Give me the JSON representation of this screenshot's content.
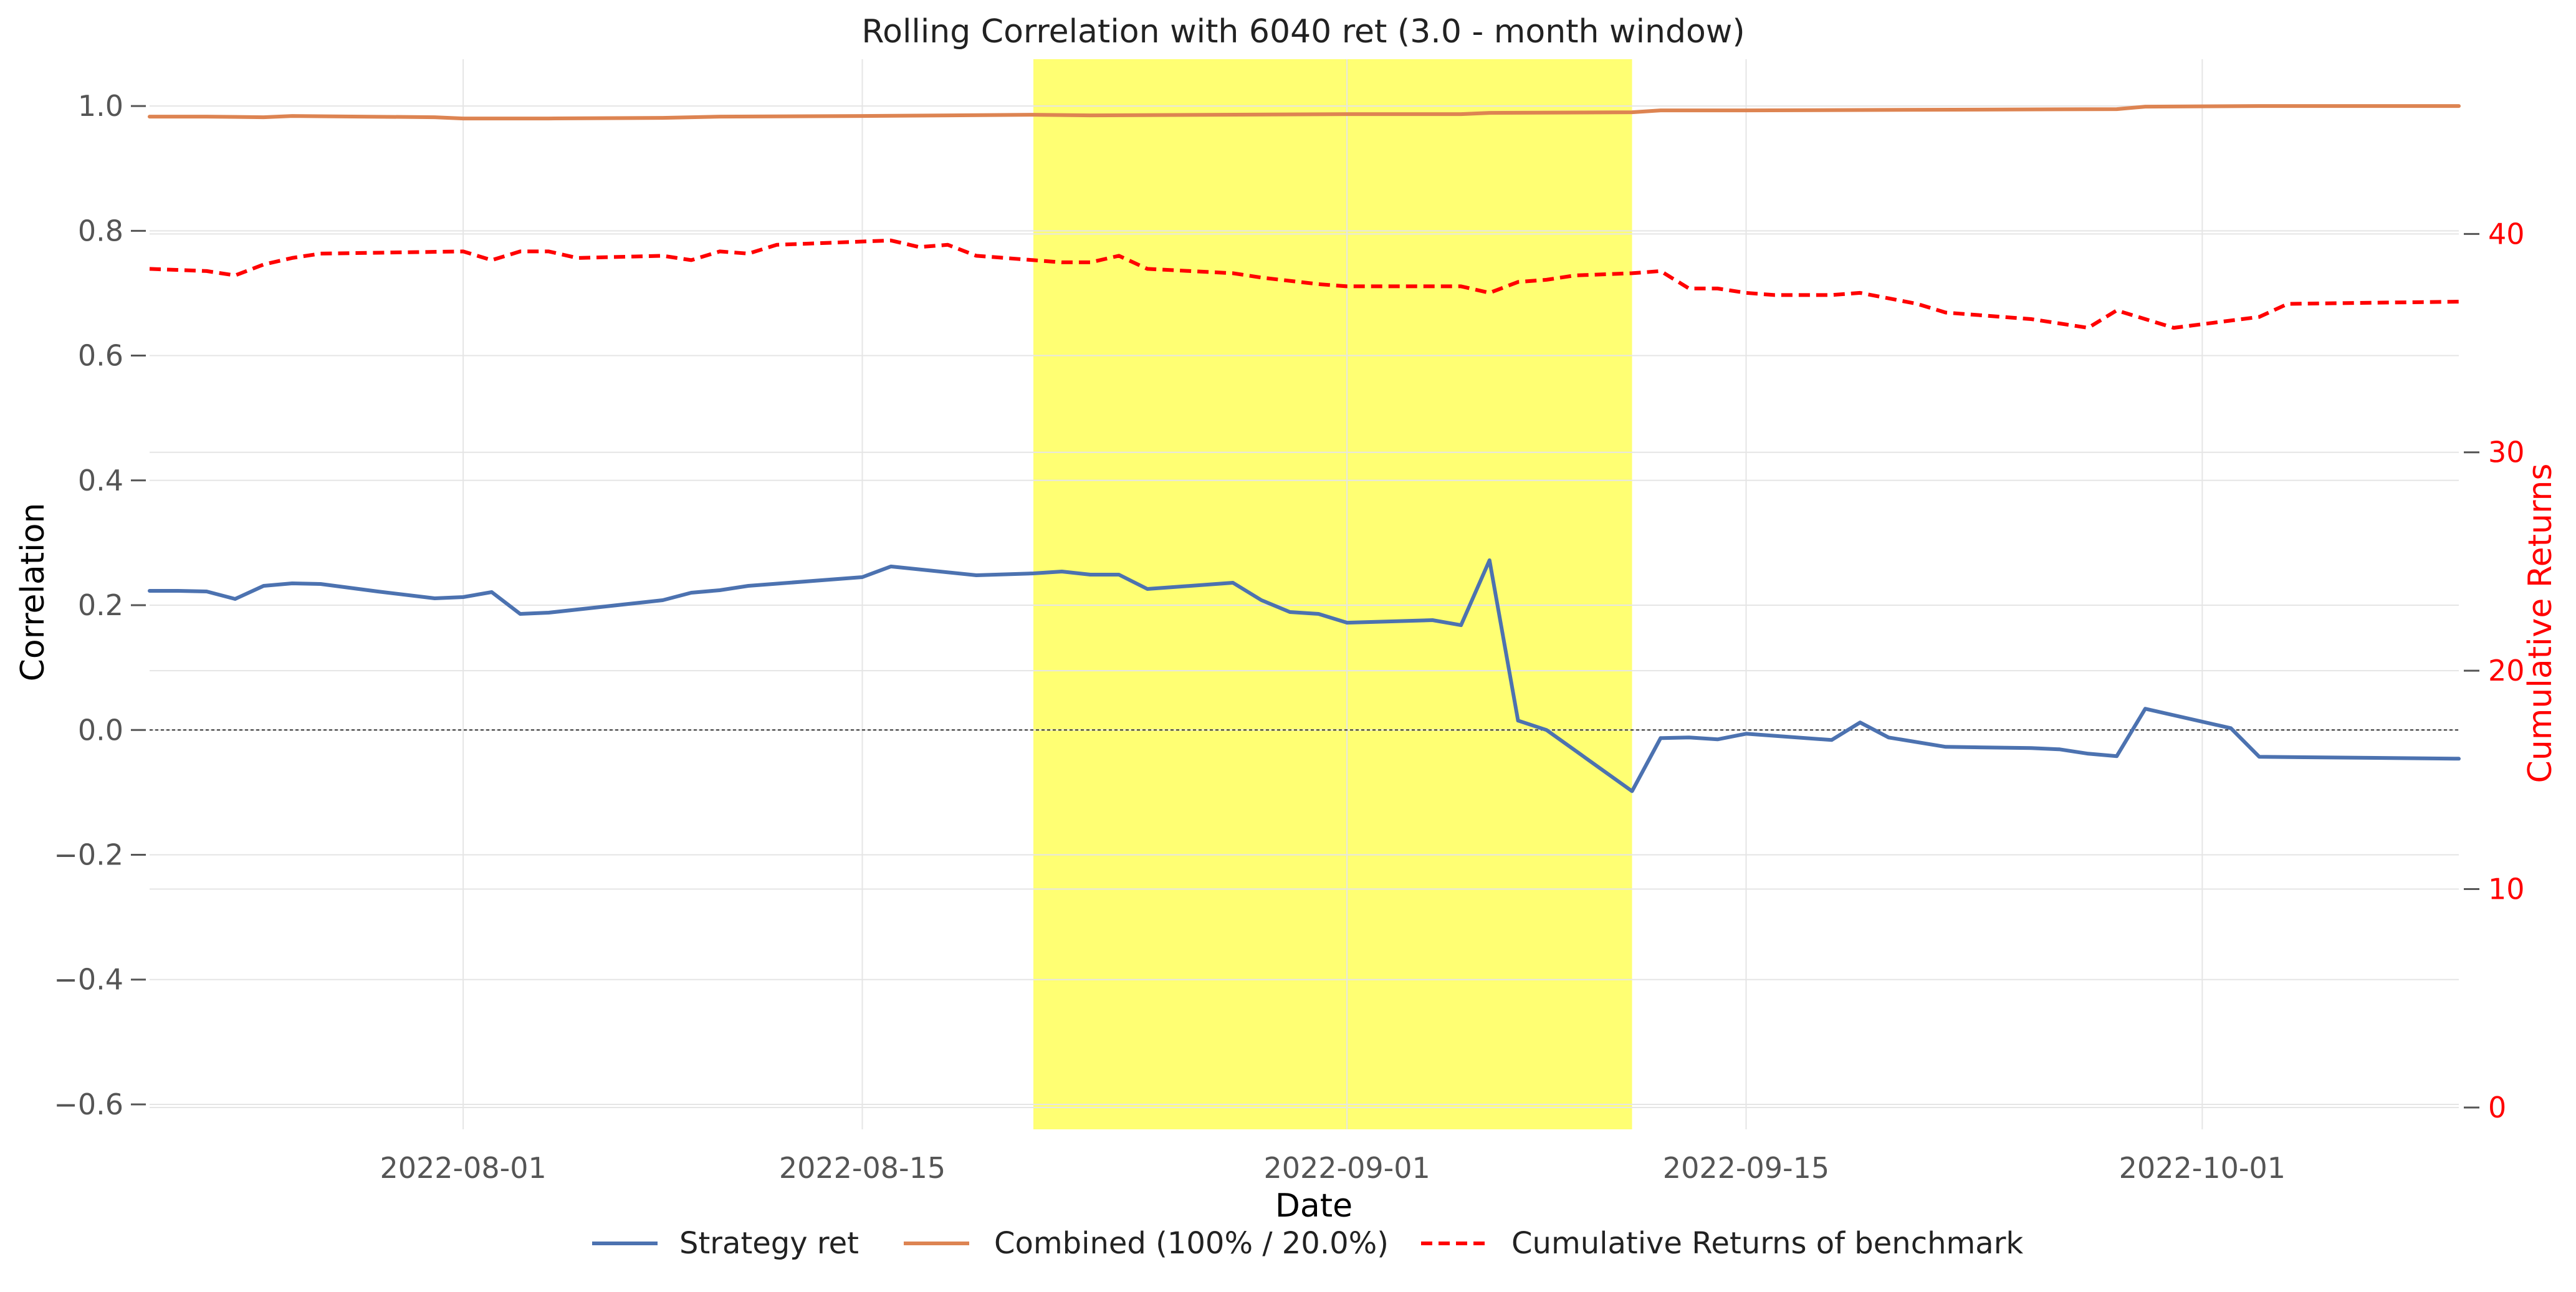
{
  "chart_data": {
    "type": "line",
    "title": "Rolling Correlation with 6040 ret (3.0 - month window)",
    "xlabel": "Date",
    "ylabel": "Correlation",
    "ylabel_right": "Cumulative Returns",
    "xlim": [
      "2022-07-21",
      "2022-10-10"
    ],
    "ylim": [
      -0.64,
      1.075
    ],
    "ylim_right": [
      -1.0,
      48.0
    ],
    "x_ticks": [
      "2022-08-01",
      "2022-08-15",
      "2022-09-01",
      "2022-09-15",
      "2022-10-01"
    ],
    "y_ticks": [
      "−0.6",
      "−0.4",
      "−0.2",
      "0.0",
      "0.2",
      "0.4",
      "0.6",
      "0.8",
      "1.0"
    ],
    "y_ticks_right": [
      "0",
      "10",
      "20",
      "30",
      "40"
    ],
    "grid": true,
    "zero_line": 0.0,
    "highlight": {
      "start": "2022-08-21",
      "end": "2022-09-11",
      "color": "#ffff00"
    },
    "legend": {
      "placement": "bottom-center",
      "items": [
        {
          "label": "Strategy ret",
          "color": "#4c72b0",
          "style": "solid"
        },
        {
          "label": "Combined (100% / 20.0%)",
          "color": "#dd8452",
          "style": "solid"
        },
        {
          "label": "Cumulative Returns of benchmark",
          "color": "#ff0000",
          "style": "dashed"
        }
      ]
    },
    "series": [
      {
        "name": "Strategy ret",
        "axis": "left",
        "color": "#4c72b0",
        "style": "solid",
        "points": [
          [
            "2022-07-21",
            0.223
          ],
          [
            "2022-07-22",
            0.223
          ],
          [
            "2022-07-23",
            0.222
          ],
          [
            "2022-07-24",
            0.21
          ],
          [
            "2022-07-25",
            0.231
          ],
          [
            "2022-07-26",
            0.235
          ],
          [
            "2022-07-27",
            0.234
          ],
          [
            "2022-07-29",
            0.222
          ],
          [
            "2022-07-31",
            0.211
          ],
          [
            "2022-08-01",
            0.213
          ],
          [
            "2022-08-02",
            0.221
          ],
          [
            "2022-08-03",
            0.186
          ],
          [
            "2022-08-04",
            0.188
          ],
          [
            "2022-08-08",
            0.208
          ],
          [
            "2022-08-09",
            0.22
          ],
          [
            "2022-08-10",
            0.224
          ],
          [
            "2022-08-11",
            0.231
          ],
          [
            "2022-08-15",
            0.245
          ],
          [
            "2022-08-16",
            0.262
          ],
          [
            "2022-08-19",
            0.248
          ],
          [
            "2022-08-21",
            0.251
          ],
          [
            "2022-08-22",
            0.254
          ],
          [
            "2022-08-23",
            0.249
          ],
          [
            "2022-08-24",
            0.249
          ],
          [
            "2022-08-25",
            0.226
          ],
          [
            "2022-08-28",
            0.236
          ],
          [
            "2022-08-29",
            0.208
          ],
          [
            "2022-08-30",
            0.189
          ],
          [
            "2022-08-31",
            0.186
          ],
          [
            "2022-09-01",
            0.172
          ],
          [
            "2022-09-04",
            0.176
          ],
          [
            "2022-09-05",
            0.168
          ],
          [
            "2022-09-06",
            0.272
          ],
          [
            "2022-09-07",
            0.015
          ],
          [
            "2022-09-08",
            0.0
          ],
          [
            "2022-09-11",
            -0.098
          ],
          [
            "2022-09-12",
            -0.013
          ],
          [
            "2022-09-13",
            -0.012
          ],
          [
            "2022-09-14",
            -0.015
          ],
          [
            "2022-09-15",
            -0.006
          ],
          [
            "2022-09-18",
            -0.016
          ],
          [
            "2022-09-19",
            0.012
          ],
          [
            "2022-09-20",
            -0.012
          ],
          [
            "2022-09-22",
            -0.027
          ],
          [
            "2022-09-25",
            -0.029
          ],
          [
            "2022-09-26",
            -0.031
          ],
          [
            "2022-09-27",
            -0.038
          ],
          [
            "2022-09-28",
            -0.042
          ],
          [
            "2022-09-29",
            0.034
          ],
          [
            "2022-10-02",
            0.003
          ],
          [
            "2022-10-03",
            -0.043
          ],
          [
            "2022-10-10",
            -0.046
          ]
        ]
      },
      {
        "name": "Combined (100% / 20.0%)",
        "axis": "left",
        "color": "#dd8452",
        "style": "solid",
        "points": [
          [
            "2022-07-21",
            0.983
          ],
          [
            "2022-07-23",
            0.983
          ],
          [
            "2022-07-25",
            0.982
          ],
          [
            "2022-07-26",
            0.984
          ],
          [
            "2022-07-31",
            0.982
          ],
          [
            "2022-08-01",
            0.98
          ],
          [
            "2022-08-04",
            0.98
          ],
          [
            "2022-08-08",
            0.981
          ],
          [
            "2022-08-10",
            0.983
          ],
          [
            "2022-08-15",
            0.984
          ],
          [
            "2022-08-21",
            0.986
          ],
          [
            "2022-08-23",
            0.985
          ],
          [
            "2022-09-01",
            0.987
          ],
          [
            "2022-09-05",
            0.987
          ],
          [
            "2022-09-06",
            0.989
          ],
          [
            "2022-09-11",
            0.99
          ],
          [
            "2022-09-12",
            0.993
          ],
          [
            "2022-09-15",
            0.993
          ],
          [
            "2022-09-28",
            0.995
          ],
          [
            "2022-09-29",
            0.999
          ],
          [
            "2022-10-03",
            1.0
          ],
          [
            "2022-10-10",
            1.0
          ]
        ]
      },
      {
        "name": "Cumulative Returns of benchmark",
        "axis": "right",
        "color": "#ff0000",
        "style": "dashed",
        "points": [
          [
            "2022-07-21",
            38.4
          ],
          [
            "2022-07-23",
            38.3
          ],
          [
            "2022-07-24",
            38.1
          ],
          [
            "2022-07-25",
            38.6
          ],
          [
            "2022-07-26",
            38.9
          ],
          [
            "2022-07-27",
            39.1
          ],
          [
            "2022-08-01",
            39.2
          ],
          [
            "2022-08-02",
            38.8
          ],
          [
            "2022-08-03",
            39.2
          ],
          [
            "2022-08-04",
            39.2
          ],
          [
            "2022-08-05",
            38.9
          ],
          [
            "2022-08-08",
            39.0
          ],
          [
            "2022-08-09",
            38.8
          ],
          [
            "2022-08-10",
            39.2
          ],
          [
            "2022-08-11",
            39.1
          ],
          [
            "2022-08-12",
            39.5
          ],
          [
            "2022-08-16",
            39.7
          ],
          [
            "2022-08-17",
            39.4
          ],
          [
            "2022-08-18",
            39.5
          ],
          [
            "2022-08-19",
            39.0
          ],
          [
            "2022-08-21",
            38.8
          ],
          [
            "2022-08-22",
            38.7
          ],
          [
            "2022-08-23",
            38.7
          ],
          [
            "2022-08-24",
            39.0
          ],
          [
            "2022-08-25",
            38.4
          ],
          [
            "2022-08-28",
            38.2
          ],
          [
            "2022-08-29",
            38.0
          ],
          [
            "2022-08-31",
            37.7
          ],
          [
            "2022-09-01",
            37.6
          ],
          [
            "2022-09-05",
            37.6
          ],
          [
            "2022-09-06",
            37.3
          ],
          [
            "2022-09-07",
            37.8
          ],
          [
            "2022-09-08",
            37.9
          ],
          [
            "2022-09-09",
            38.1
          ],
          [
            "2022-09-11",
            38.2
          ],
          [
            "2022-09-12",
            38.3
          ],
          [
            "2022-09-13",
            37.5
          ],
          [
            "2022-09-14",
            37.5
          ],
          [
            "2022-09-15",
            37.3
          ],
          [
            "2022-09-16",
            37.2
          ],
          [
            "2022-09-18",
            37.2
          ],
          [
            "2022-09-19",
            37.3
          ],
          [
            "2022-09-21",
            36.8
          ],
          [
            "2022-09-22",
            36.4
          ],
          [
            "2022-09-25",
            36.1
          ],
          [
            "2022-09-26",
            35.9
          ],
          [
            "2022-09-27",
            35.7
          ],
          [
            "2022-09-28",
            36.5
          ],
          [
            "2022-09-29",
            36.1
          ],
          [
            "2022-09-30",
            35.7
          ],
          [
            "2022-10-03",
            36.2
          ],
          [
            "2022-10-04",
            36.8
          ],
          [
            "2022-10-10",
            36.9
          ]
        ]
      }
    ]
  }
}
